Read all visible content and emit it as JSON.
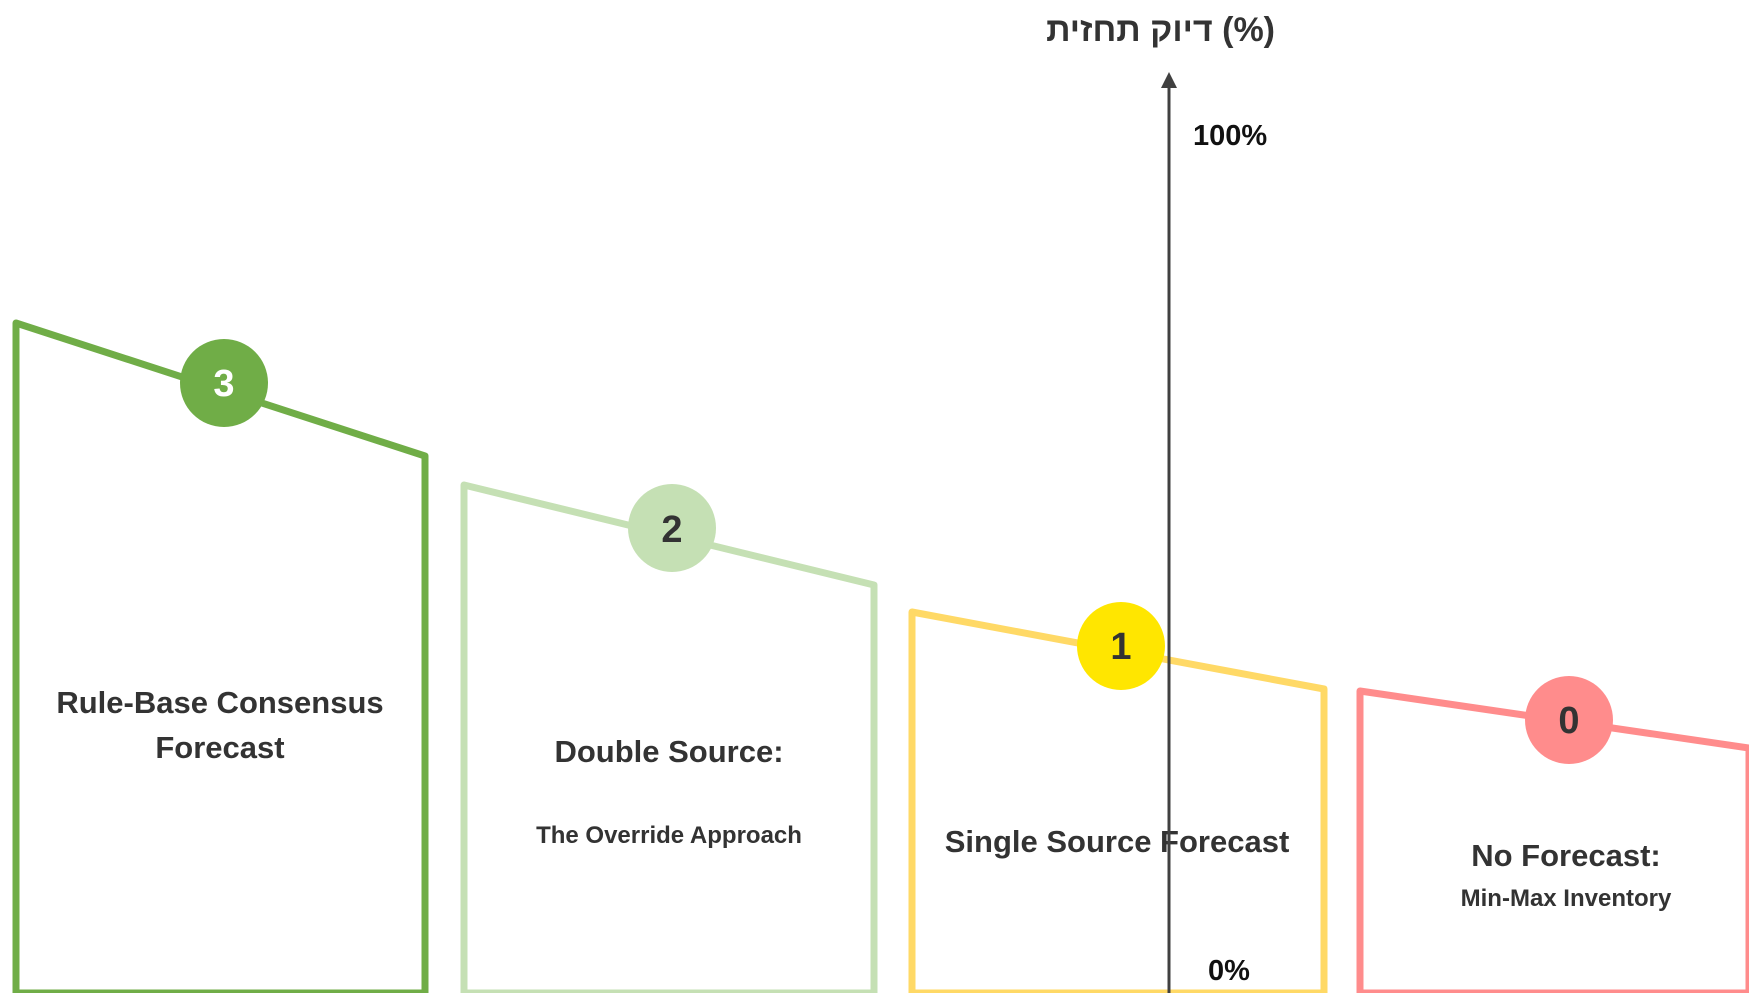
{
  "axis": {
    "title": "דיוק תחזית (%)",
    "top_label": "100%",
    "bottom_label": "0%"
  },
  "levels": [
    {
      "number": "3",
      "title": "Rule-Base Consensus",
      "title2": "Forecast",
      "subtitle": "",
      "stroke": "#70ad47",
      "circle": "#70ad47",
      "number_color": "#ffffff"
    },
    {
      "number": "2",
      "title": "Double Source:",
      "title2": "",
      "subtitle": "The Override Approach",
      "stroke": "#c5e0b4",
      "circle": "#c5e0b4",
      "number_color": "#333333"
    },
    {
      "number": "1",
      "title": "Single Source Forecast",
      "title2": "",
      "subtitle": "",
      "stroke": "#ffd966",
      "circle": "#ffe600",
      "number_color": "#333333"
    },
    {
      "number": "0",
      "title": "No Forecast:",
      "title2": "",
      "subtitle": "Min-Max Inventory",
      "stroke": "#ff8c8c",
      "circle": "#ff8c8c",
      "number_color": "#333333"
    }
  ]
}
